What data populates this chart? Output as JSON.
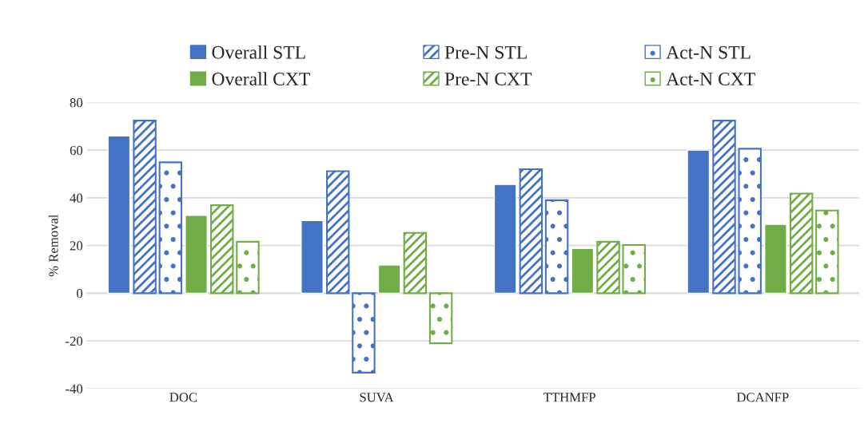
{
  "chart_data": {
    "type": "bar",
    "ylabel": "% Removal",
    "categories": [
      "DOC",
      "SUVA",
      "TTHMFP",
      "DCANFP"
    ],
    "series": [
      {
        "name": "Overall STL",
        "color": "#4472c4",
        "values": [
          66,
          30.5,
          45.6,
          60
        ]
      },
      {
        "name": "Pre-N STL",
        "color": "#4472c4",
        "values": [
          72.4,
          51.2,
          52,
          72.4
        ]
      },
      {
        "name": "Act-N STL",
        "color": "#4472c4",
        "values": [
          54.9,
          -33.3,
          39,
          60.6
        ]
      },
      {
        "name": "Overall CXT",
        "color": "#70ad47",
        "values": [
          32.7,
          11.8,
          18.8,
          28.9
        ]
      },
      {
        "name": "Pre-N CXT",
        "color": "#70ad47",
        "values": [
          36.9,
          25.3,
          21.6,
          41.8
        ]
      },
      {
        "name": "Act-N CXT",
        "color": "#70ad47",
        "values": [
          21.6,
          -21,
          20.2,
          34.7
        ]
      }
    ],
    "ylim": [
      -40,
      80
    ],
    "yticks": [
      -40,
      -20,
      0,
      20,
      40,
      60,
      80
    ],
    "grid": "y",
    "legend": "top"
  }
}
